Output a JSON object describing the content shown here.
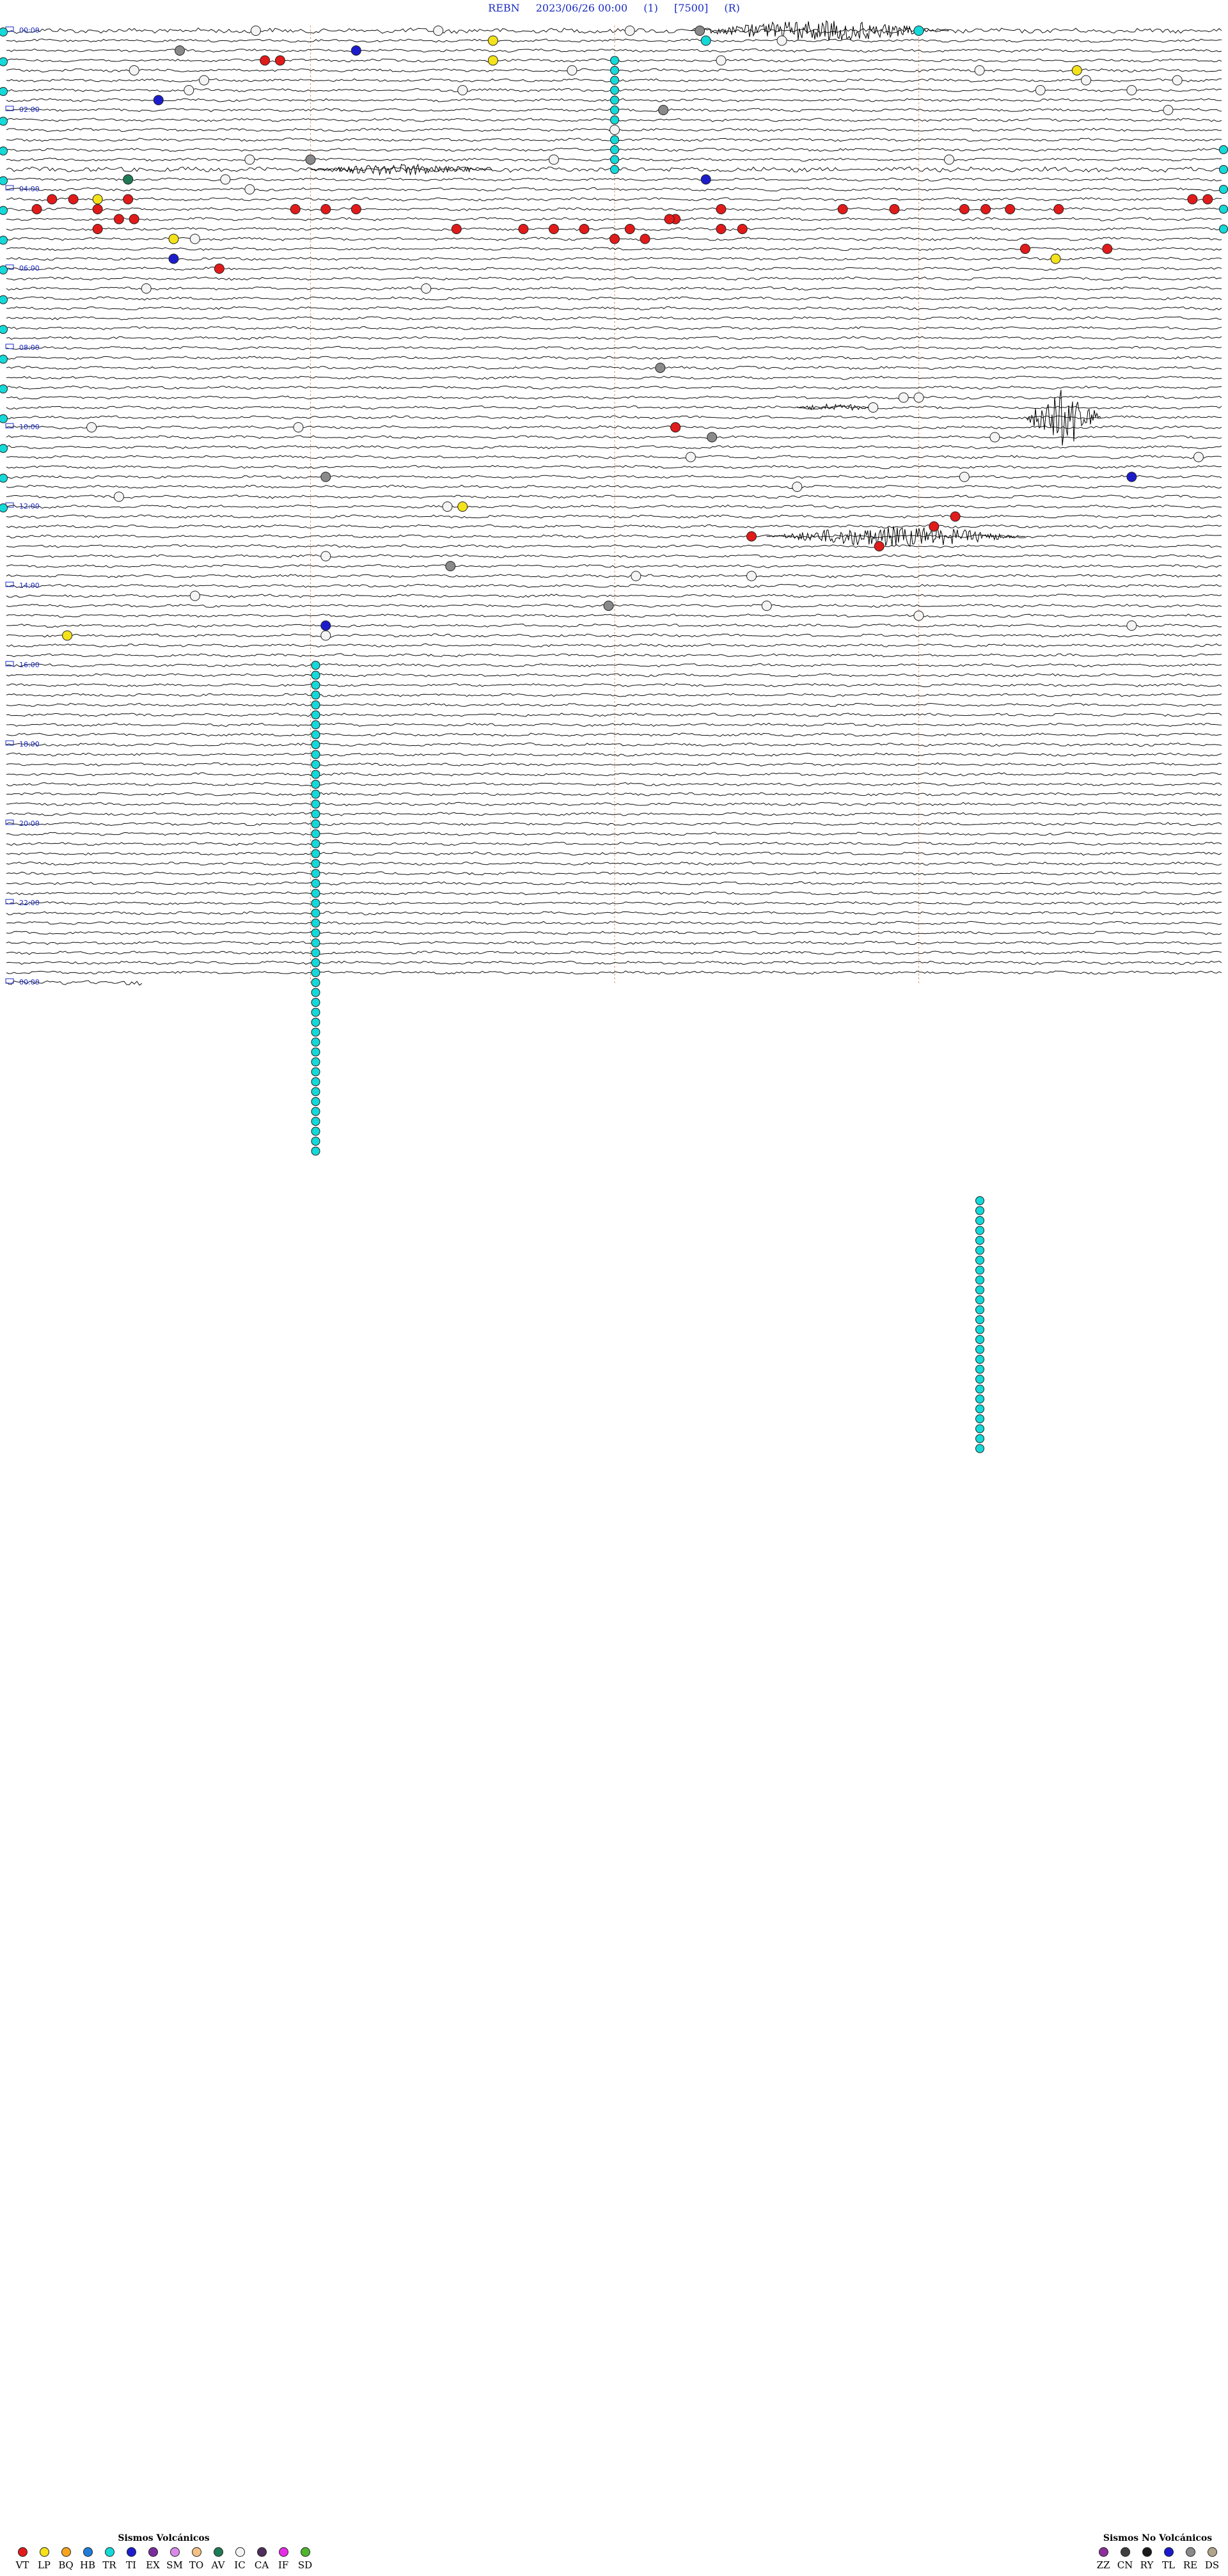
{
  "header": {
    "station": "REBN",
    "datetime": "2023/06/26 00:00",
    "channel": "(1)",
    "scale": "[7500]",
    "flag": "(R)"
  },
  "chart_data": {
    "type": "heliplot",
    "title": "REBN    2023/06/26 00:00    (1)    [7500]    (R)",
    "hour_labels": [
      "00:00",
      "02:00",
      "04:00",
      "06:00",
      "08:00",
      "10:00",
      "12:00",
      "14:00",
      "16:00",
      "18:00",
      "20:00",
      "22:00",
      "00:00"
    ],
    "rows_per_hour": 4,
    "grid": true,
    "event_types": {
      "VT": "#e11a1a",
      "LP": "#f4e21a",
      "BQ": "#f7a51e",
      "HB": "#1f7dd6",
      "TR": "#14d9d9",
      "TI": "#1c1ccc",
      "EX": "#7b2c9c",
      "SM": "#d889e8",
      "TO": "#f3c183",
      "AV": "#1f7a55",
      "IC": "#f4f4f4",
      "CA": "#4e2e5a",
      "IF": "#e52de6",
      "SD": "#4fb52f",
      "ZZ": "#8d2f9a",
      "CN": "#3f3f3f",
      "RY": "#1a1a1a",
      "TL": "#1a1acc",
      "RE": "#8a8a8a",
      "DS": "#b0a58a"
    },
    "events": [
      {
        "row": 0,
        "t": 0.82,
        "type": "IC"
      },
      {
        "row": 0,
        "t": 1.42,
        "type": "IC"
      },
      {
        "row": 0,
        "t": 2.05,
        "type": "IC"
      },
      {
        "row": 0,
        "t": 2.28,
        "type": "RE"
      },
      {
        "row": 0,
        "t": 3.0,
        "type": "TR"
      },
      {
        "row": 1,
        "t": 1.6,
        "type": "LP"
      },
      {
        "row": 1,
        "t": 2.3,
        "type": "TR"
      },
      {
        "row": 1,
        "t": 2.55,
        "type": "IC"
      },
      {
        "row": 2,
        "t": 1.15,
        "type": "TI"
      },
      {
        "row": 2,
        "t": 0.57,
        "type": "RE"
      },
      {
        "row": 3,
        "t": 0.85,
        "type": "VT"
      },
      {
        "row": 3,
        "t": 0.9,
        "type": "VT"
      },
      {
        "row": 3,
        "t": 2.35,
        "type": "IC"
      },
      {
        "row": 3,
        "t": 1.6,
        "type": "LP"
      },
      {
        "row": 4,
        "t": 0.42,
        "type": "IC"
      },
      {
        "row": 4,
        "t": 1.86,
        "type": "IC"
      },
      {
        "row": 4,
        "t": 3.2,
        "type": "IC"
      },
      {
        "row": 4,
        "t": 3.52,
        "type": "LP"
      },
      {
        "row": 5,
        "t": 3.55,
        "type": "IC"
      },
      {
        "row": 5,
        "t": 3.85,
        "type": "IC"
      },
      {
        "row": 5,
        "t": 0.65,
        "type": "IC"
      },
      {
        "row": 6,
        "t": 0.6,
        "type": "IC"
      },
      {
        "row": 6,
        "t": 1.5,
        "type": "IC"
      },
      {
        "row": 6,
        "t": 3.4,
        "type": "IC"
      },
      {
        "row": 6,
        "t": 3.7,
        "type": "IC"
      },
      {
        "row": 7,
        "t": 0.5,
        "type": "TI"
      },
      {
        "row": 8,
        "t": 2.16,
        "type": "RE"
      },
      {
        "row": 8,
        "t": 3.82,
        "type": "IC"
      },
      {
        "row": 10,
        "t": 2.0,
        "type": "IC"
      },
      {
        "row": 13,
        "t": 0.8,
        "type": "IC"
      },
      {
        "row": 13,
        "t": 1.0,
        "type": "RE"
      },
      {
        "row": 13,
        "t": 1.8,
        "type": "IC"
      },
      {
        "row": 13,
        "t": 3.1,
        "type": "IC"
      },
      {
        "row": 15,
        "t": 0.4,
        "type": "AV"
      },
      {
        "row": 15,
        "t": 2.3,
        "type": "TI"
      },
      {
        "row": 15,
        "t": 0.72,
        "type": "IC"
      },
      {
        "row": 16,
        "t": 0.8,
        "type": "IC"
      },
      {
        "row": 17,
        "t": 0.4,
        "type": "VT"
      },
      {
        "row": 17,
        "t": 0.3,
        "type": "LP"
      },
      {
        "row": 17,
        "t": 3.95,
        "type": "VT"
      },
      {
        "row": 17,
        "t": 3.9,
        "type": "VT"
      },
      {
        "row": 17,
        "t": 0.15,
        "type": "VT"
      },
      {
        "row": 17,
        "t": 0.22,
        "type": "VT"
      },
      {
        "row": 18,
        "t": 0.1,
        "type": "VT"
      },
      {
        "row": 18,
        "t": 0.3,
        "type": "VT"
      },
      {
        "row": 18,
        "t": 0.95,
        "type": "VT"
      },
      {
        "row": 18,
        "t": 1.05,
        "type": "VT"
      },
      {
        "row": 18,
        "t": 1.15,
        "type": "VT"
      },
      {
        "row": 18,
        "t": 2.35,
        "type": "VT"
      },
      {
        "row": 18,
        "t": 2.75,
        "type": "VT"
      },
      {
        "row": 18,
        "t": 2.92,
        "type": "VT"
      },
      {
        "row": 18,
        "t": 3.15,
        "type": "VT"
      },
      {
        "row": 18,
        "t": 3.22,
        "type": "VT"
      },
      {
        "row": 18,
        "t": 3.3,
        "type": "VT"
      },
      {
        "row": 18,
        "t": 3.46,
        "type": "VT"
      },
      {
        "row": 19,
        "t": 0.37,
        "type": "VT"
      },
      {
        "row": 19,
        "t": 0.42,
        "type": "VT"
      },
      {
        "row": 19,
        "t": 2.2,
        "type": "VT"
      },
      {
        "row": 19,
        "t": 2.18,
        "type": "VT"
      },
      {
        "row": 20,
        "t": 0.3,
        "type": "VT"
      },
      {
        "row": 20,
        "t": 1.48,
        "type": "VT"
      },
      {
        "row": 20,
        "t": 1.7,
        "type": "VT"
      },
      {
        "row": 20,
        "t": 1.8,
        "type": "VT"
      },
      {
        "row": 20,
        "t": 1.9,
        "type": "VT"
      },
      {
        "row": 20,
        "t": 2.05,
        "type": "VT"
      },
      {
        "row": 20,
        "t": 2.35,
        "type": "VT"
      },
      {
        "row": 20,
        "t": 2.42,
        "type": "VT"
      },
      {
        "row": 21,
        "t": 2.0,
        "type": "VT"
      },
      {
        "row": 21,
        "t": 2.1,
        "type": "VT"
      },
      {
        "row": 21,
        "t": 0.55,
        "type": "LP"
      },
      {
        "row": 21,
        "t": 0.62,
        "type": "IC"
      },
      {
        "row": 22,
        "t": 3.62,
        "type": "VT"
      },
      {
        "row": 22,
        "t": 3.35,
        "type": "VT"
      },
      {
        "row": 23,
        "t": 0.55,
        "type": "TI"
      },
      {
        "row": 23,
        "t": 3.45,
        "type": "LP"
      },
      {
        "row": 24,
        "t": 0.7,
        "type": "VT"
      },
      {
        "row": 26,
        "t": 1.38,
        "type": "IC"
      },
      {
        "row": 26,
        "t": 0.46,
        "type": "IC"
      },
      {
        "row": 34,
        "t": 2.15,
        "type": "RE"
      },
      {
        "row": 37,
        "t": 3.0,
        "type": "IC"
      },
      {
        "row": 37,
        "t": 2.95,
        "type": "IC"
      },
      {
        "row": 38,
        "t": 2.85,
        "type": "IC"
      },
      {
        "row": 40,
        "t": 2.2,
        "type": "TI"
      },
      {
        "row": 40,
        "t": 2.2,
        "type": "VT"
      },
      {
        "row": 40,
        "t": 0.28,
        "type": "IC"
      },
      {
        "row": 40,
        "t": 0.96,
        "type": "IC"
      },
      {
        "row": 41,
        "t": 2.32,
        "type": "RE"
      },
      {
        "row": 41,
        "t": 3.25,
        "type": "IC"
      },
      {
        "row": 43,
        "t": 2.25,
        "type": "IC"
      },
      {
        "row": 43,
        "t": 3.92,
        "type": "IC"
      },
      {
        "row": 45,
        "t": 1.05,
        "type": "RE"
      },
      {
        "row": 45,
        "t": 3.15,
        "type": "IC"
      },
      {
        "row": 45,
        "t": 3.7,
        "type": "TI"
      },
      {
        "row": 46,
        "t": 2.6,
        "type": "IC"
      },
      {
        "row": 47,
        "t": 0.37,
        "type": "IC"
      },
      {
        "row": 48,
        "t": 1.5,
        "type": "LP"
      },
      {
        "row": 48,
        "t": 1.45,
        "type": "IC"
      },
      {
        "row": 49,
        "t": 3.12,
        "type": "VT"
      },
      {
        "row": 50,
        "t": 3.05,
        "type": "VT"
      },
      {
        "row": 51,
        "t": 2.45,
        "type": "VT"
      },
      {
        "row": 52,
        "t": 2.87,
        "type": "VT"
      },
      {
        "row": 53,
        "t": 1.05,
        "type": "IC"
      },
      {
        "row": 54,
        "t": 1.46,
        "type": "RE"
      },
      {
        "row": 55,
        "t": 2.07,
        "type": "IC"
      },
      {
        "row": 55,
        "t": 2.45,
        "type": "IC"
      },
      {
        "row": 57,
        "t": 0.62,
        "type": "IC"
      },
      {
        "row": 58,
        "t": 1.98,
        "type": "RE"
      },
      {
        "row": 58,
        "t": 2.5,
        "type": "IC"
      },
      {
        "row": 59,
        "t": 3.0,
        "type": "IC"
      },
      {
        "row": 60,
        "t": 1.05,
        "type": "TI"
      },
      {
        "row": 60,
        "t": 3.7,
        "type": "IC"
      },
      {
        "row": 61,
        "t": 0.2,
        "type": "LP"
      },
      {
        "row": 61,
        "t": 1.05,
        "type": "IC"
      }
    ],
    "tremor_columns": [
      {
        "t": 2.0,
        "row_start": 3,
        "row_end": 14
      },
      {
        "t": 1.0,
        "row_start": 64,
        "row_end": 113
      },
      {
        "t": 4.0,
        "row_start": 118,
        "row_end": 143
      }
    ],
    "legend_volcanic": {
      "title": "Sismos Volcánicos",
      "items": [
        "VT",
        "LP",
        "BQ",
        "HB",
        "TR",
        "TI",
        "EX",
        "SM",
        "TO",
        "AV",
        "IC",
        "CA",
        "IF",
        "SD"
      ]
    },
    "legend_non_volcanic": {
      "title": "Sismos No Volcánicos",
      "items": [
        "ZZ",
        "CN",
        "RY",
        "TL",
        "RE",
        "DS"
      ]
    }
  }
}
